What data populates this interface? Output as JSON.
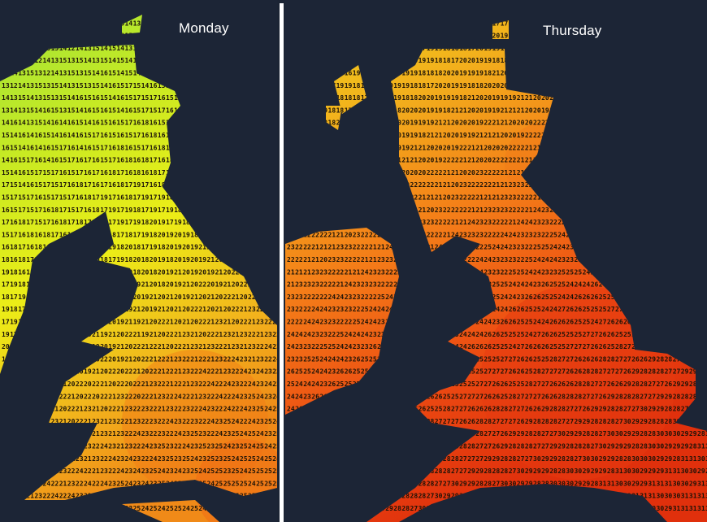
{
  "maps": [
    {
      "label": "Monday",
      "colors": {
        "cool": "#8ee03a",
        "mild": "#e6ee1a",
        "warm": "#f3a21a",
        "hot": "#f06a14"
      }
    },
    {
      "label": "Thursday",
      "colors": {
        "mild": "#f0c81c",
        "warm": "#f57d18",
        "hot": "#ea3c10",
        "hotter": "#df2a0c"
      }
    }
  ],
  "background": "#1c2536"
}
